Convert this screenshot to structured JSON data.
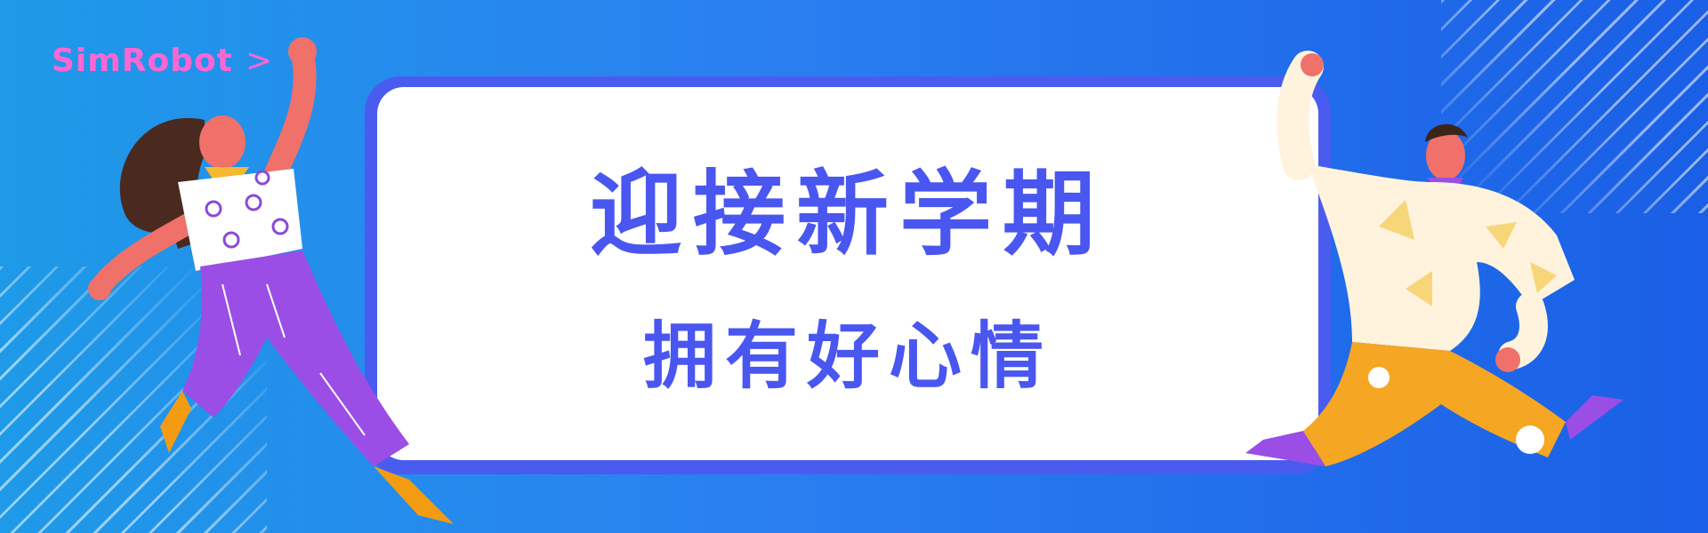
{
  "brand": {
    "name": "SimRobot",
    "chevron": ">"
  },
  "headline": {
    "line1": "迎接新学期",
    "line2": "拥有好心情"
  },
  "colors": {
    "background_start": "#1e9ae8",
    "background_end": "#1a5fe6",
    "card": "#ffffff",
    "card_border": "#4a5cf0",
    "headline_text": "#4a56f0",
    "brand_text": "#ff66d4"
  },
  "illustrations": {
    "left": "girl-jumping-illustration",
    "right": "boy-jumping-illustration"
  }
}
